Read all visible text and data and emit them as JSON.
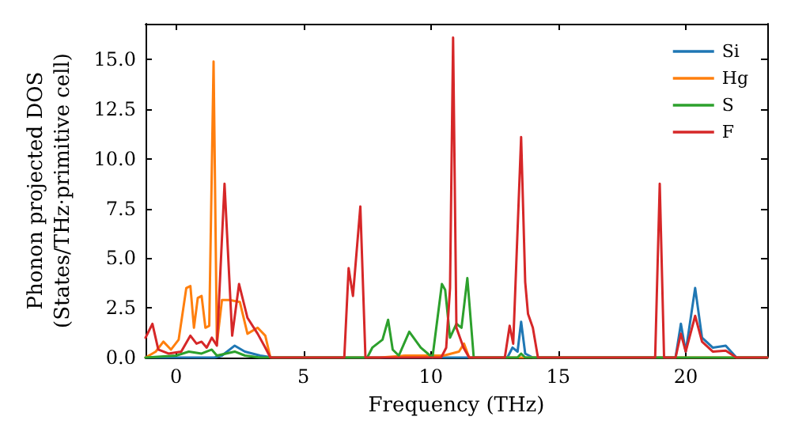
{
  "chart_data": {
    "type": "line",
    "xlabel": "Frequency (THz)",
    "ylabel": "Phonon projected DOS\n(States/THz·primitive cell)",
    "xlim": [
      -1.2,
      23.2
    ],
    "xticks": [
      0,
      5,
      10,
      15,
      20
    ],
    "ylim": [
      0,
      16.8
    ],
    "yticks": [
      {
        "value": 0,
        "label": "0.0"
      },
      {
        "value": 2.5,
        "label": "2.5"
      },
      {
        "value": 5,
        "label": "5.0"
      },
      {
        "value": 7.5,
        "label": "7.5"
      },
      {
        "value": 10,
        "label": "10.0"
      },
      {
        "value": 12.5,
        "label": "12.5"
      },
      {
        "value": 15,
        "label": "15.0"
      }
    ],
    "grid": false,
    "legend": "top right",
    "marker": "none",
    "line_style": "solid",
    "series": [
      {
        "name": "Si",
        "color": "#1f77b4",
        "x": [
          -1.2,
          1.5,
          1.8,
          2.3,
          2.7,
          3.3,
          3.8,
          13.0,
          13.2,
          13.4,
          13.54,
          13.7,
          14.0,
          19.6,
          19.81,
          20.0,
          20.37,
          20.64,
          21.06,
          21.57,
          21.99,
          23.2
        ],
        "values": [
          0,
          0,
          0.1,
          0.6,
          0.3,
          0.1,
          0,
          0,
          0.5,
          0.3,
          1.8,
          0.2,
          0,
          0,
          1.7,
          0.3,
          3.5,
          1.0,
          0.5,
          0.6,
          0,
          0
        ]
      },
      {
        "name": "Hg",
        "color": "#ff7f0e",
        "x": [
          -1.2,
          -0.8,
          -0.5,
          -0.2,
          0.1,
          0.4,
          0.56,
          0.7,
          0.85,
          1.0,
          1.15,
          1.3,
          1.47,
          1.6,
          1.8,
          2.1,
          2.5,
          2.8,
          3.2,
          3.5,
          3.7,
          8.0,
          9.0,
          10.5,
          11.1,
          11.3,
          11.5,
          23.2
        ],
        "values": [
          0,
          0.3,
          0.8,
          0.4,
          0.9,
          3.5,
          3.6,
          1.5,
          3.0,
          3.1,
          1.5,
          1.6,
          14.9,
          0.7,
          2.9,
          2.9,
          2.8,
          1.2,
          1.5,
          1.1,
          0,
          0,
          0.1,
          0.1,
          0.3,
          0.7,
          0,
          0
        ]
      },
      {
        "name": "S",
        "color": "#2ca02c",
        "x": [
          -1.2,
          0,
          0.5,
          1.0,
          1.4,
          1.6,
          2.3,
          2.7,
          3.3,
          7.5,
          7.7,
          8.1,
          8.32,
          8.5,
          8.74,
          9.15,
          9.6,
          10.06,
          10.43,
          10.56,
          10.75,
          11.0,
          11.2,
          11.43,
          11.68,
          13.4,
          13.54,
          13.7,
          23.2
        ],
        "values": [
          0,
          0.1,
          0.3,
          0.2,
          0.4,
          0.1,
          0.3,
          0.1,
          0,
          0,
          0.5,
          0.9,
          1.9,
          0.4,
          0.1,
          1.3,
          0.5,
          0,
          3.7,
          3.4,
          1.0,
          1.7,
          1.5,
          4.0,
          0,
          0,
          0.2,
          0,
          0
        ]
      },
      {
        "name": "F",
        "color": "#d62728",
        "x": [
          -1.2,
          -0.93,
          -0.7,
          -0.3,
          0.2,
          0.56,
          0.8,
          1.0,
          1.2,
          1.4,
          1.6,
          1.9,
          2.2,
          2.47,
          2.8,
          3.2,
          3.5,
          3.7,
          6.6,
          6.77,
          6.94,
          7.23,
          7.43,
          10.4,
          10.6,
          10.75,
          10.87,
          11.0,
          11.28,
          11.5,
          12.9,
          13.09,
          13.23,
          13.54,
          13.7,
          13.81,
          14.0,
          14.2,
          18.8,
          18.98,
          19.15,
          19.6,
          19.81,
          20.0,
          20.37,
          20.64,
          21.06,
          21.57,
          21.99,
          23.2
        ],
        "values": [
          1.0,
          1.7,
          0.4,
          0.2,
          0.3,
          1.1,
          0.7,
          0.8,
          0.5,
          1.0,
          0.6,
          8.75,
          1.1,
          3.7,
          2.0,
          1.2,
          0.5,
          0,
          0,
          4.5,
          3.1,
          7.6,
          0,
          0,
          0.5,
          3.5,
          16.1,
          1.5,
          0.5,
          0,
          0,
          1.6,
          0.7,
          11.1,
          3.8,
          2.2,
          1.5,
          0,
          0,
          8.75,
          0,
          0,
          1.2,
          0.3,
          2.1,
          0.8,
          0.3,
          0.35,
          0,
          0
        ]
      }
    ]
  }
}
